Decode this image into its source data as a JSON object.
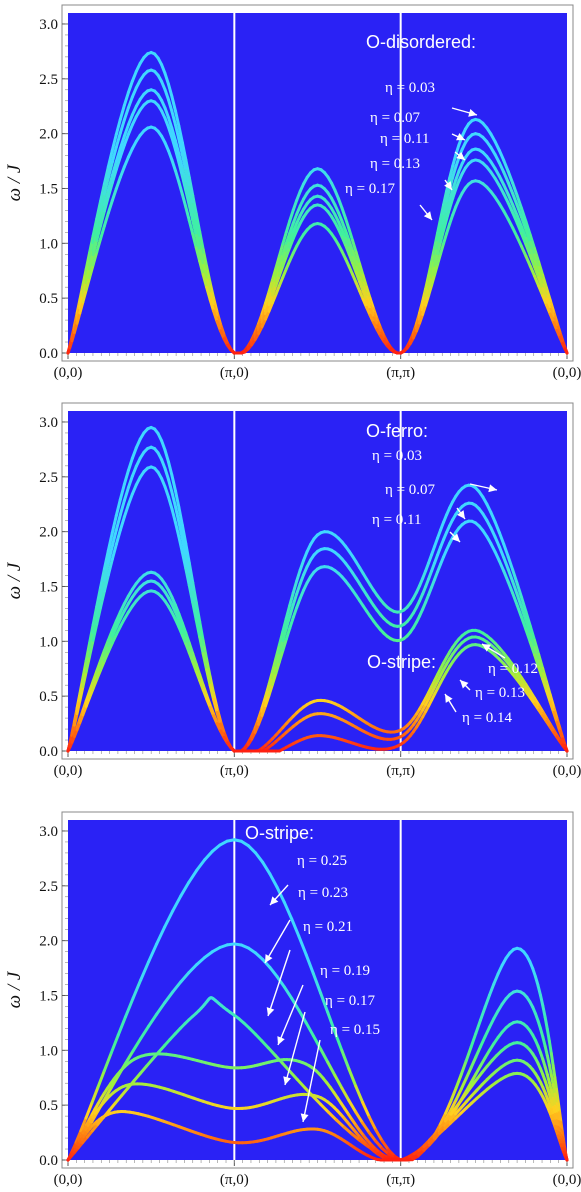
{
  "chart_data": [
    {
      "type": "line",
      "title": "O-disordered:",
      "ylabel": "ω / J",
      "ylim": [
        0,
        3.1
      ],
      "yticks": [
        "0.0",
        "0.5",
        "1.0",
        "1.5",
        "2.0",
        "2.5",
        "3.0"
      ],
      "xticks": [
        "(0,0)",
        "(π,0)",
        "(π,π)",
        "(0,0)"
      ],
      "background": "#2a22f5",
      "colormap": "jet (color encodes intensity)",
      "series": [
        {
          "name": "η = 0.03",
          "points": [
            [
              0,
              0
            ],
            [
              0.5,
              2.74
            ],
            [
              1,
              0
            ],
            [
              1.5,
              1.68
            ],
            [
              2,
              0
            ],
            [
              2.45,
              2.13
            ],
            [
              3,
              0
            ]
          ]
        },
        {
          "name": "η = 0.07",
          "points": [
            [
              0,
              0
            ],
            [
              0.5,
              2.58
            ],
            [
              1,
              0
            ],
            [
              1.5,
              1.53
            ],
            [
              2,
              0
            ],
            [
              2.45,
              2.0
            ],
            [
              3,
              0
            ]
          ]
        },
        {
          "name": "η = 0.11",
          "points": [
            [
              0,
              0
            ],
            [
              0.5,
              2.4
            ],
            [
              1,
              0
            ],
            [
              1.5,
              1.43
            ],
            [
              2,
              0
            ],
            [
              2.45,
              1.86
            ],
            [
              3,
              0
            ]
          ]
        },
        {
          "name": "η = 0.13",
          "points": [
            [
              0,
              0
            ],
            [
              0.5,
              2.3
            ],
            [
              1,
              0
            ],
            [
              1.5,
              1.35
            ],
            [
              2,
              0
            ],
            [
              2.45,
              1.76
            ],
            [
              3,
              0
            ]
          ]
        },
        {
          "name": "η = 0.17",
          "points": [
            [
              0,
              0
            ],
            [
              0.5,
              2.06
            ],
            [
              1,
              0
            ],
            [
              1.5,
              1.18
            ],
            [
              2,
              0
            ],
            [
              2.45,
              1.57
            ],
            [
              3,
              0
            ]
          ]
        }
      ]
    },
    {
      "type": "line",
      "ylabel": "ω / J",
      "ylim": [
        0,
        3.1
      ],
      "yticks": [
        "0.0",
        "0.5",
        "1.0",
        "1.5",
        "2.0",
        "2.5",
        "3.0"
      ],
      "xticks": [
        "(0,0)",
        "(π,0)",
        "(π,π)",
        "(0,0)"
      ],
      "background": "#2a22f5",
      "titles": [
        "O-ferro:",
        "O-stripe:"
      ],
      "series": [
        {
          "name": "η = 0.03",
          "group": "O-ferro",
          "points": [
            [
              0,
              0
            ],
            [
              0.5,
              2.95
            ],
            [
              1,
              0
            ],
            [
              1.5,
              1.97
            ],
            [
              2,
              1.27
            ],
            [
              2.45,
              2.4
            ],
            [
              3,
              0
            ]
          ]
        },
        {
          "name": "η = 0.07",
          "group": "O-ferro",
          "points": [
            [
              0,
              0
            ],
            [
              0.5,
              2.77
            ],
            [
              1,
              0
            ],
            [
              1.5,
              1.82
            ],
            [
              2,
              1.14
            ],
            [
              2.45,
              2.24
            ],
            [
              3,
              0
            ]
          ]
        },
        {
          "name": "η = 0.11",
          "group": "O-ferro",
          "points": [
            [
              0,
              0
            ],
            [
              0.5,
              2.59
            ],
            [
              1,
              0
            ],
            [
              1.5,
              1.66
            ],
            [
              2,
              1.01
            ],
            [
              2.45,
              2.08
            ],
            [
              3,
              0
            ]
          ]
        },
        {
          "name": "η = 0.12",
          "group": "O-stripe",
          "points": [
            [
              0,
              0
            ],
            [
              0.5,
              1.63
            ],
            [
              1,
              0
            ],
            [
              1.5,
              0.46
            ],
            [
              2,
              0.19
            ],
            [
              2.45,
              1.1
            ],
            [
              3,
              0
            ]
          ]
        },
        {
          "name": "η = 0.13",
          "group": "O-stripe",
          "points": [
            [
              0,
              0
            ],
            [
              0.5,
              1.55
            ],
            [
              1,
              0
            ],
            [
              1.5,
              0.34
            ],
            [
              2,
              0.13
            ],
            [
              2.45,
              1.04
            ],
            [
              3,
              0
            ]
          ]
        },
        {
          "name": "η = 0.14",
          "group": "O-stripe",
          "points": [
            [
              0,
              0
            ],
            [
              0.5,
              1.46
            ],
            [
              1,
              0
            ],
            [
              1.5,
              0.14
            ],
            [
              2,
              0.06
            ],
            [
              2.45,
              0.97
            ],
            [
              3,
              0
            ]
          ]
        }
      ]
    },
    {
      "type": "line",
      "title": "O-stripe:",
      "ylabel": "ω / J",
      "ylim": [
        0,
        3.1
      ],
      "yticks": [
        "0.0",
        "0.5",
        "1.0",
        "1.5",
        "2.0",
        "2.5",
        "3.0"
      ],
      "xticks": [
        "(0,0)",
        "(π,0)",
        "(π,π)",
        "(0,0)"
      ],
      "background": "#2a22f5",
      "series": [
        {
          "name": "η = 0.25",
          "points": [
            [
              0,
              0
            ],
            [
              1,
              2.92
            ],
            [
              2,
              0
            ],
            [
              2.7,
              1.93
            ],
            [
              3,
              0
            ]
          ]
        },
        {
          "name": "η = 0.23",
          "points": [
            [
              0,
              0
            ],
            [
              1,
              1.97
            ],
            [
              2,
              0
            ],
            [
              2.7,
              1.54
            ],
            [
              3,
              0
            ]
          ]
        },
        {
          "name": "η = 0.21",
          "points": [
            [
              0,
              0
            ],
            [
              0.75,
              1.31
            ],
            [
              1,
              1.32
            ],
            [
              2,
              0
            ],
            [
              2.7,
              1.26
            ],
            [
              3,
              0
            ]
          ]
        },
        {
          "name": "η = 0.19",
          "points": [
            [
              0,
              0
            ],
            [
              0.4,
              0.92
            ],
            [
              1,
              0.84
            ],
            [
              1.45,
              0.86
            ],
            [
              2,
              0
            ],
            [
              2.7,
              1.07
            ],
            [
              3,
              0
            ]
          ]
        },
        {
          "name": "η = 0.17",
          "points": [
            [
              0,
              0
            ],
            [
              0.35,
              0.68
            ],
            [
              1,
              0.47
            ],
            [
              1.5,
              0.58
            ],
            [
              2,
              0
            ],
            [
              2.7,
              0.91
            ],
            [
              3,
              0
            ]
          ]
        },
        {
          "name": "η = 0.15",
          "points": [
            [
              0,
              0
            ],
            [
              0.3,
              0.44
            ],
            [
              1,
              0.16
            ],
            [
              1.5,
              0.28
            ],
            [
              2,
              0
            ],
            [
              2.7,
              0.79
            ],
            [
              3,
              0
            ]
          ]
        }
      ]
    }
  ]
}
